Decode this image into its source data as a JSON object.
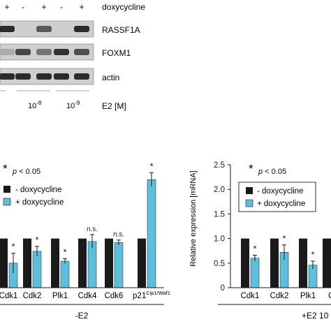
{
  "blot": {
    "treatment_signs": [
      "+",
      "-",
      "+",
      "-",
      "+"
    ],
    "treatment_label": "doxycycline",
    "rows": [
      "RASSF1A",
      "FOXM1",
      "actin"
    ],
    "e2_label": "E2 [M]",
    "e2_doses": [
      {
        "base": "10",
        "exp": "-8"
      },
      {
        "base": "10",
        "exp": "-9"
      }
    ],
    "band_intensity": {
      "RASSF1A": [
        0.85,
        0.05,
        0.6,
        0.05,
        0.85
      ],
      "FOXM1": [
        0.15,
        0.7,
        0.45,
        0.8,
        0.65
      ],
      "actin": [
        0.85,
        0.85,
        0.85,
        0.85,
        0.85
      ]
    }
  },
  "colors": {
    "minus_dox": "#1a1a1a",
    "plus_dox": "#5bc0de"
  },
  "chart_data": [
    {
      "type": "bar",
      "title": "",
      "xlabel": "-E2",
      "ylabel": "",
      "ylim": [
        0,
        2.5
      ],
      "categories": [
        "Cdk1",
        "Cdk2",
        "Plk1",
        "Cdk4",
        "Cdk6",
        "p21"
      ],
      "category_superscripts": [
        "",
        "",
        "",
        "",
        "",
        "Cip1/Waf1"
      ],
      "series": [
        {
          "name": "- doxycycline",
          "values": [
            1.0,
            1.0,
            1.0,
            1.0,
            1.0,
            1.0
          ],
          "errors": [
            0,
            0,
            0,
            0,
            0,
            0
          ]
        },
        {
          "name": "+ doxycycline",
          "values": [
            0.5,
            0.74,
            0.54,
            0.94,
            0.92,
            2.2
          ],
          "errors": [
            0.2,
            0.1,
            0.05,
            0.14,
            0.05,
            0.14
          ]
        }
      ],
      "annotations": [
        "*",
        "*",
        "*",
        "n.s.",
        "n.s.",
        "*"
      ],
      "significance_legend": {
        "symbol": "*",
        "text": "p < 0.05"
      },
      "legend": "top-left"
    },
    {
      "type": "bar",
      "title": "",
      "xlabel": "+E2 10",
      "ylabel": "Relative expression [mRNA]",
      "ylim": [
        0,
        2.5
      ],
      "yticks": [
        "0",
        "0.5",
        "1.0",
        "1.5",
        "2.0",
        "2.5"
      ],
      "categories": [
        "Cdk1",
        "Cdk2",
        "Plk1",
        "C"
      ],
      "series": [
        {
          "name": "- doxycycline",
          "values": [
            1.0,
            1.0,
            1.0,
            1.0
          ],
          "errors": [
            0,
            0,
            0,
            0
          ]
        },
        {
          "name": "+ doxycycline",
          "values": [
            0.6,
            0.72,
            0.46,
            null
          ],
          "errors": [
            0.06,
            0.15,
            0.08,
            null
          ]
        }
      ],
      "annotations": [
        "*",
        "*",
        "*",
        ""
      ],
      "significance_legend": {
        "symbol": "*",
        "text": "p < 0.05"
      },
      "legend": "top-left"
    }
  ]
}
